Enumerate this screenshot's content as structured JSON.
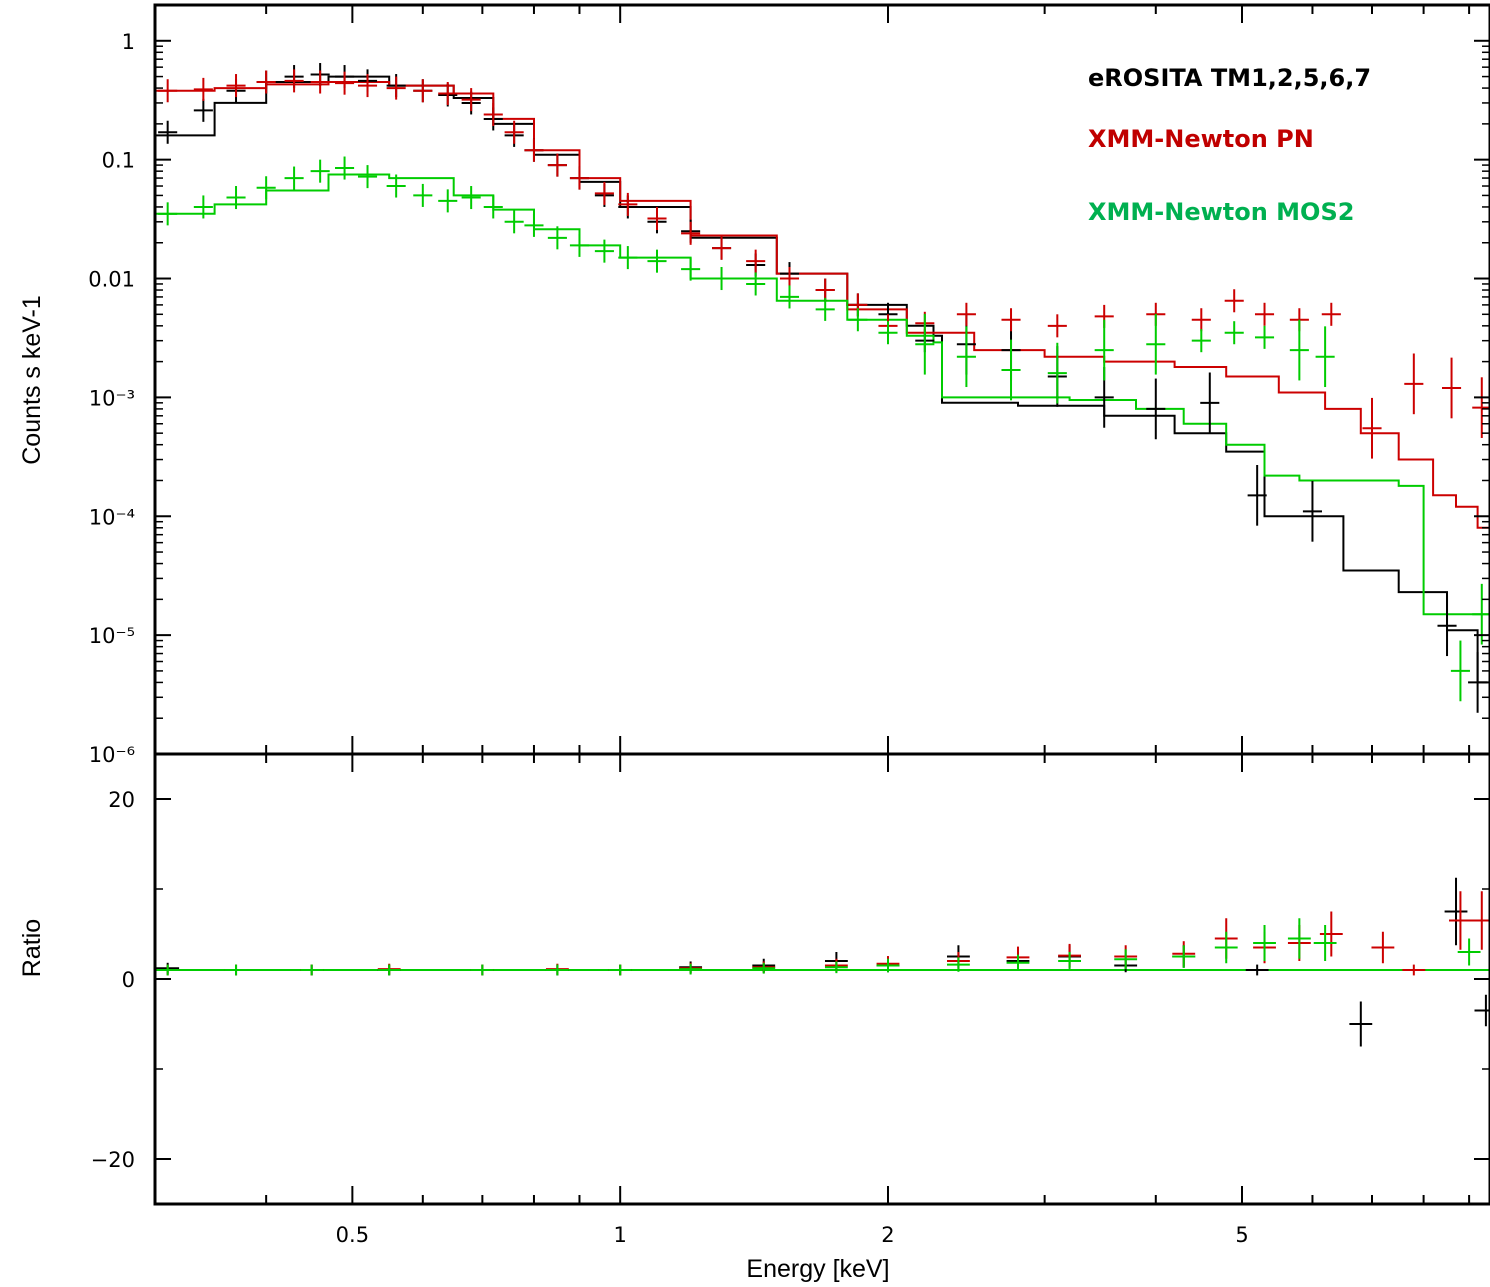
{
  "chart_data": {
    "type": "scatter",
    "x_axis": {
      "label": "Energy [keV]",
      "scale": "log",
      "range": [
        0.3,
        9.5
      ],
      "ticks": [
        {
          "value": 0.5,
          "label": "0.5"
        },
        {
          "value": 1,
          "label": "1"
        },
        {
          "value": 2,
          "label": "2"
        },
        {
          "value": 5,
          "label": "5"
        }
      ]
    },
    "top_panel": {
      "ylabel": "Counts s keV-1",
      "yscale": "log",
      "ylim": [
        1e-06,
        2
      ],
      "ticks": [
        {
          "value": 1,
          "label": "1"
        },
        {
          "value": 0.1,
          "label": "0.1"
        },
        {
          "value": 0.01,
          "label": "0.01"
        },
        {
          "value": 0.001,
          "label": "10⁻³"
        },
        {
          "value": 0.0001,
          "label": "10⁻⁴"
        },
        {
          "value": 1e-05,
          "label": "10⁻⁵"
        },
        {
          "value": 1e-06,
          "label": "10⁻⁶"
        }
      ]
    },
    "bottom_panel": {
      "ylabel": "Ratio",
      "ylim": [
        -25,
        25
      ],
      "ticks": [
        {
          "value": 20,
          "label": "20"
        },
        {
          "value": 0,
          "label": "0"
        },
        {
          "value": -20,
          "label": "−20"
        }
      ]
    },
    "series": [
      {
        "name": "eROSITA TM1,2,5,6,7",
        "color": "#000000",
        "model_x": [
          0.3,
          0.35,
          0.4,
          0.47,
          0.55,
          0.65,
          0.72,
          0.8,
          0.9,
          1.0,
          1.2,
          1.5,
          1.8,
          2.1,
          2.25,
          2.3,
          2.8,
          3.5,
          4.2,
          4.8,
          5.3,
          6.5,
          7.5,
          8.5,
          9.2,
          9.5
        ],
        "model_y": [
          0.16,
          0.3,
          0.45,
          0.5,
          0.42,
          0.33,
          0.2,
          0.11,
          0.065,
          0.04,
          0.022,
          0.011,
          0.006,
          0.004,
          0.0033,
          0.0009,
          0.00085,
          0.0007,
          0.0005,
          0.00035,
          0.0001,
          3.5e-05,
          2.3e-05,
          1.1e-05,
          4e-06,
          4e-06
        ],
        "data_x": [
          0.31,
          0.34,
          0.37,
          0.4,
          0.43,
          0.46,
          0.49,
          0.52,
          0.56,
          0.6,
          0.64,
          0.68,
          0.72,
          0.76,
          0.8,
          0.85,
          0.9,
          0.96,
          1.02,
          1.1,
          1.2,
          1.3,
          1.42,
          1.55,
          1.7,
          1.85,
          2.0,
          2.2,
          2.45,
          2.75,
          3.1,
          3.5,
          4.0,
          4.6,
          5.2,
          6.0,
          8.5,
          9.2
        ],
        "data_y": [
          0.17,
          0.26,
          0.38,
          0.45,
          0.5,
          0.52,
          0.5,
          0.46,
          0.42,
          0.38,
          0.35,
          0.3,
          0.22,
          0.16,
          0.12,
          0.09,
          0.07,
          0.05,
          0.04,
          0.03,
          0.025,
          0.018,
          0.013,
          0.011,
          0.008,
          0.006,
          0.005,
          0.003,
          0.0028,
          0.0025,
          0.0015,
          0.001,
          0.0008,
          0.0009,
          0.00015,
          0.00011,
          1.2e-05,
          4e-06
        ],
        "ratio_x": [
          0.31,
          0.37,
          0.45,
          0.55,
          0.7,
          0.85,
          1.0,
          1.2,
          1.45,
          1.75,
          2.0,
          2.4,
          2.8,
          3.2,
          3.7,
          4.3,
          5.2,
          6.8,
          8.7,
          9.4
        ],
        "ratio_y": [
          1.2,
          1,
          1,
          1,
          1,
          1,
          1,
          1.3,
          1.5,
          2,
          1.5,
          2.5,
          2,
          2.5,
          1.5,
          2.5,
          1,
          -5,
          7.5,
          -3.5
        ]
      },
      {
        "name": "XMM-Newton PN",
        "color": "#cc0000",
        "model_x": [
          0.3,
          0.35,
          0.4,
          0.47,
          0.55,
          0.65,
          0.72,
          0.8,
          0.9,
          1.0,
          1.2,
          1.5,
          1.8,
          2.1,
          2.5,
          3.0,
          3.5,
          4.2,
          4.8,
          5.5,
          6.2,
          6.8,
          7.5,
          8.2,
          8.7,
          9.2,
          9.5
        ],
        "model_y": [
          0.38,
          0.4,
          0.43,
          0.45,
          0.42,
          0.36,
          0.22,
          0.12,
          0.07,
          0.045,
          0.023,
          0.011,
          0.0055,
          0.0035,
          0.0025,
          0.0022,
          0.002,
          0.0018,
          0.0015,
          0.0011,
          0.0008,
          0.0005,
          0.0003,
          0.00015,
          0.00012,
          8e-05,
          8e-05
        ],
        "data_x": [
          0.31,
          0.34,
          0.37,
          0.4,
          0.43,
          0.46,
          0.49,
          0.52,
          0.56,
          0.6,
          0.64,
          0.68,
          0.72,
          0.76,
          0.8,
          0.85,
          0.9,
          0.96,
          1.02,
          1.1,
          1.2,
          1.3,
          1.42,
          1.55,
          1.7,
          1.85,
          2.0,
          2.2,
          2.45,
          2.75,
          3.1,
          3.5,
          4.0,
          4.5,
          4.9,
          5.3,
          5.8,
          6.3,
          7.0,
          7.8,
          8.6,
          9.3
        ],
        "data_y": [
          0.38,
          0.39,
          0.42,
          0.45,
          0.46,
          0.45,
          0.44,
          0.42,
          0.4,
          0.38,
          0.36,
          0.32,
          0.24,
          0.17,
          0.12,
          0.09,
          0.07,
          0.052,
          0.042,
          0.032,
          0.024,
          0.018,
          0.014,
          0.01,
          0.008,
          0.006,
          0.004,
          0.0042,
          0.005,
          0.0045,
          0.004,
          0.0048,
          0.005,
          0.0045,
          0.0065,
          0.005,
          0.0045,
          0.005,
          0.00055,
          0.0013,
          0.0012,
          0.00082
        ],
        "ratio_x": [
          0.31,
          0.37,
          0.45,
          0.55,
          0.7,
          0.85,
          1.0,
          1.2,
          1.45,
          1.75,
          2.0,
          2.4,
          2.8,
          3.2,
          3.7,
          4.3,
          4.8,
          5.3,
          5.8,
          6.3,
          7.2,
          7.8,
          8.8,
          9.3
        ],
        "ratio_y": [
          1,
          1,
          1,
          1.1,
          1,
          1.1,
          1,
          1.2,
          1.3,
          1.5,
          1.7,
          2,
          2.4,
          2.6,
          2.5,
          2.8,
          4.5,
          3.5,
          4,
          5,
          3.5,
          1,
          6.5,
          6.5
        ]
      },
      {
        "name": "XMM-Newton MOS2",
        "color": "#00cc00",
        "model_x": [
          0.3,
          0.35,
          0.4,
          0.47,
          0.55,
          0.65,
          0.72,
          0.8,
          0.9,
          1.0,
          1.2,
          1.5,
          1.8,
          2.1,
          2.25,
          2.3,
          2.8,
          3.2,
          3.8,
          4.3,
          4.8,
          5.3,
          5.8,
          6.5,
          7.5,
          8.0,
          8.5,
          9.5
        ],
        "model_y": [
          0.035,
          0.042,
          0.055,
          0.075,
          0.07,
          0.05,
          0.038,
          0.026,
          0.019,
          0.015,
          0.01,
          0.0065,
          0.0045,
          0.0033,
          0.0029,
          0.001,
          0.001,
          0.00095,
          0.0008,
          0.0006,
          0.0004,
          0.00022,
          0.0002,
          0.0002,
          0.00018,
          1.5e-05,
          1.5e-05,
          1.5e-05
        ],
        "data_x": [
          0.31,
          0.34,
          0.37,
          0.4,
          0.43,
          0.46,
          0.49,
          0.52,
          0.56,
          0.6,
          0.64,
          0.68,
          0.72,
          0.76,
          0.8,
          0.85,
          0.9,
          0.96,
          1.02,
          1.1,
          1.2,
          1.3,
          1.42,
          1.55,
          1.7,
          1.85,
          2.0,
          2.2,
          2.45,
          2.75,
          3.1,
          3.5,
          4.0,
          4.5,
          4.9,
          5.3,
          5.8,
          6.2,
          8.8,
          9.3
        ],
        "data_y": [
          0.035,
          0.04,
          0.048,
          0.058,
          0.07,
          0.08,
          0.085,
          0.072,
          0.06,
          0.05,
          0.045,
          0.048,
          0.04,
          0.03,
          0.028,
          0.022,
          0.019,
          0.017,
          0.015,
          0.014,
          0.012,
          0.01,
          0.009,
          0.007,
          0.0055,
          0.0045,
          0.0035,
          0.0028,
          0.0022,
          0.0017,
          0.0016,
          0.0025,
          0.0028,
          0.003,
          0.0035,
          0.0032,
          0.0025,
          0.0022,
          5e-06,
          1.5e-05
        ],
        "ratio_x": [
          0.31,
          0.37,
          0.45,
          0.55,
          0.7,
          0.85,
          1.0,
          1.2,
          1.45,
          1.75,
          2.0,
          2.4,
          2.8,
          3.2,
          3.7,
          4.3,
          4.8,
          5.3,
          5.8,
          6.2,
          9.0
        ],
        "ratio_y": [
          1,
          1,
          1,
          1,
          1,
          1,
          1,
          1.1,
          1.2,
          1.3,
          1.5,
          1.6,
          1.8,
          2,
          2.2,
          2.5,
          3.5,
          4,
          4.5,
          4,
          3
        ]
      }
    ]
  }
}
